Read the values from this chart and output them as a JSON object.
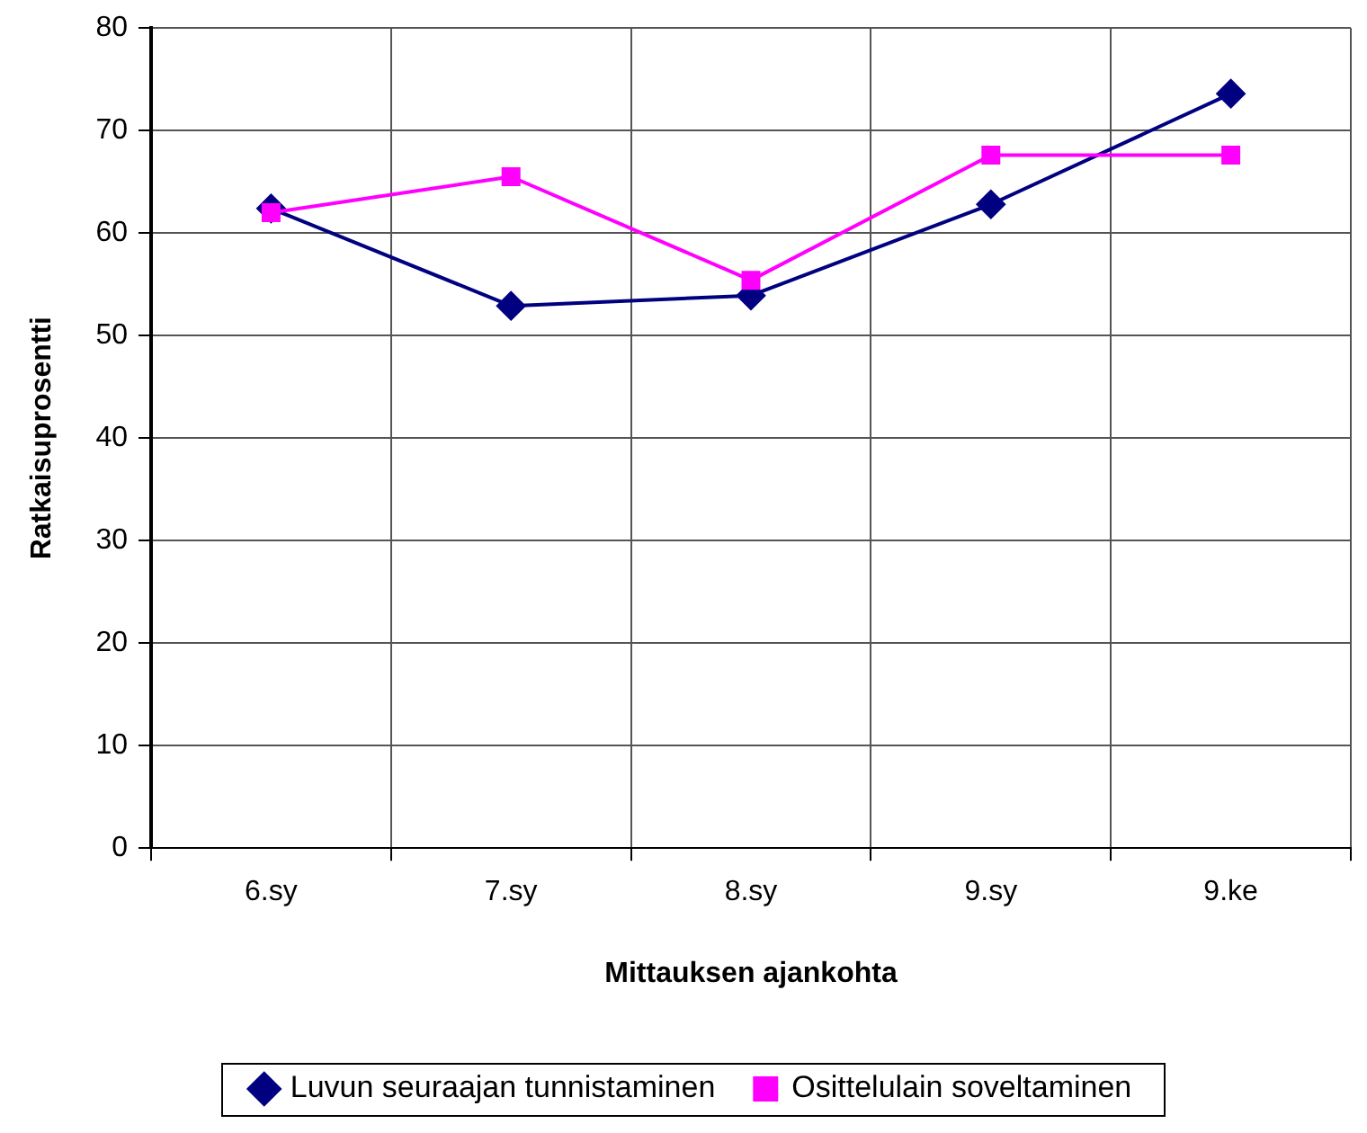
{
  "chart_data": {
    "type": "line",
    "xlabel": "Mittauksen ajankohta",
    "ylabel": "Ratkaisuprosentti",
    "categories": [
      "6.sy",
      "7.sy",
      "8.sy",
      "9.sy",
      "9.ke"
    ],
    "series": [
      {
        "name": "Luvun seuraajan tunnistaminen",
        "color": "#000080",
        "marker": "diamond",
        "values": [
          62.4,
          52.9,
          53.9,
          62.8,
          73.6
        ]
      },
      {
        "name": "Osittelulain soveltaminen",
        "color": "#ff00ff",
        "marker": "square",
        "values": [
          62,
          65.5,
          55.4,
          67.6,
          67.6
        ]
      }
    ],
    "ylim": [
      0,
      80
    ],
    "yticks": [
      0,
      10,
      20,
      30,
      40,
      50,
      60,
      70,
      80
    ],
    "grid": true,
    "legend": "bottom"
  }
}
